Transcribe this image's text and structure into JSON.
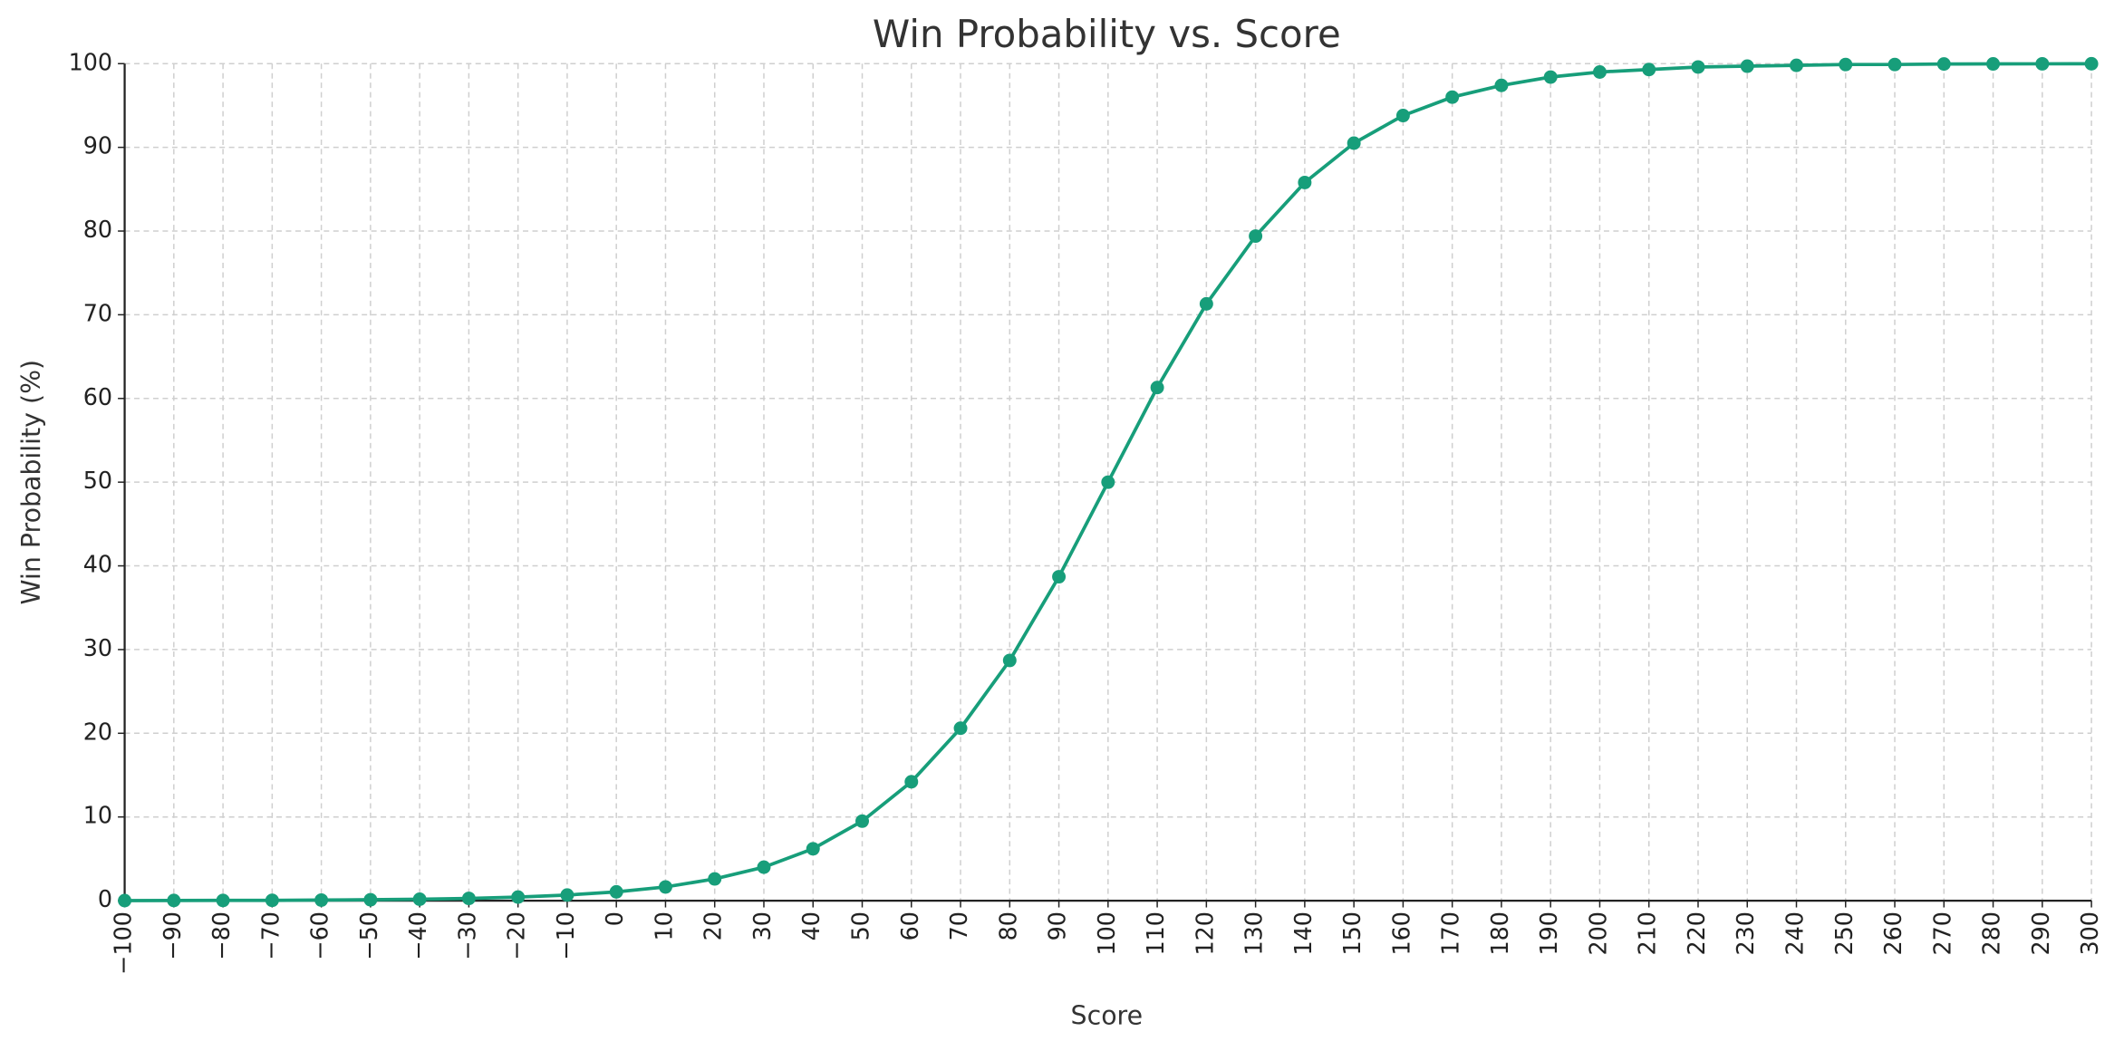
{
  "chart_data": {
    "type": "line",
    "title": "Win Probability vs. Score",
    "x_label": "Score",
    "y_label": "Win Probability (%)",
    "x": [
      -100,
      -90,
      -80,
      -70,
      -60,
      -50,
      -40,
      -30,
      -20,
      -10,
      0,
      10,
      20,
      30,
      40,
      50,
      60,
      70,
      80,
      90,
      100,
      110,
      120,
      130,
      140,
      150,
      160,
      170,
      180,
      190,
      200,
      210,
      220,
      230,
      240,
      250,
      260,
      270,
      280,
      290,
      300
    ],
    "series": [
      {
        "name": "Win Probability",
        "color": "#179e7a",
        "values": [
          0.01,
          0.02,
          0.03,
          0.04,
          0.07,
          0.11,
          0.17,
          0.27,
          0.43,
          0.67,
          1.05,
          1.64,
          2.6,
          4.0,
          6.2,
          9.5,
          14.2,
          20.6,
          28.7,
          38.7,
          50.0,
          61.3,
          71.3,
          79.4,
          85.8,
          90.5,
          93.8,
          96.0,
          97.4,
          98.4,
          99.0,
          99.3,
          99.6,
          99.7,
          99.8,
          99.9,
          99.9,
          99.96,
          99.97,
          99.98,
          99.99
        ]
      }
    ],
    "xlim": [
      -100,
      300
    ],
    "xticks": [
      {
        "value": -100,
        "label": "−100"
      },
      {
        "value": -90,
        "label": "−90"
      },
      {
        "value": -80,
        "label": "−80"
      },
      {
        "value": -70,
        "label": "−70"
      },
      {
        "value": -60,
        "label": "−60"
      },
      {
        "value": -50,
        "label": "−50"
      },
      {
        "value": -40,
        "label": "−40"
      },
      {
        "value": -30,
        "label": "−30"
      },
      {
        "value": -20,
        "label": "−20"
      },
      {
        "value": -10,
        "label": "−10"
      },
      0,
      10,
      20,
      30,
      40,
      50,
      60,
      70,
      80,
      90,
      100,
      110,
      120,
      130,
      140,
      150,
      160,
      170,
      180,
      190,
      200,
      210,
      220,
      230,
      240,
      250,
      260,
      270,
      280,
      290,
      300
    ],
    "ylim": [
      0,
      100
    ],
    "yticks": [
      0,
      10,
      20,
      30,
      40,
      50,
      60,
      70,
      80,
      90,
      100
    ],
    "grid": true
  }
}
